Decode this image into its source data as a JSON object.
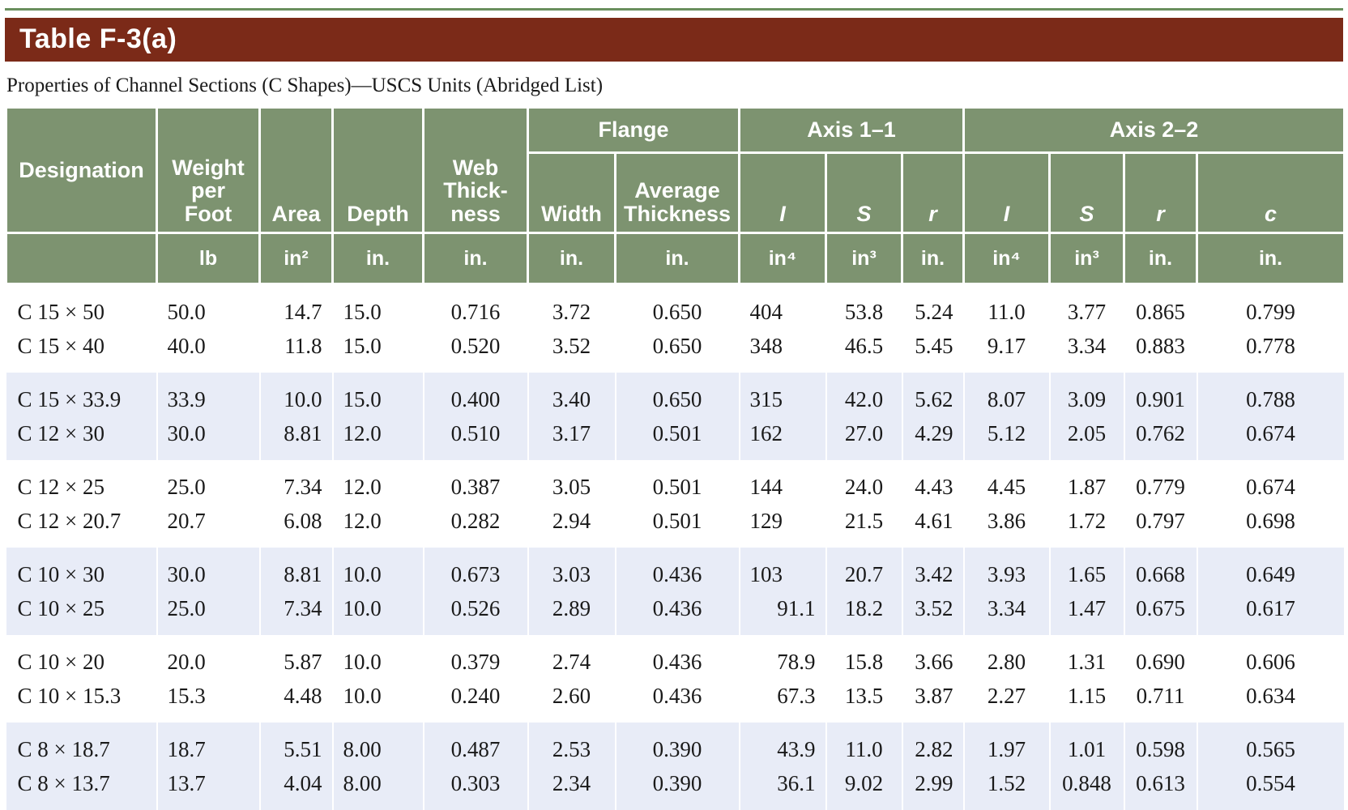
{
  "title": "Table F-3(a)",
  "caption": "Properties of Channel Sections (C Shapes)—USCS Units (Abridged List)",
  "headers": {
    "designation": "Designation",
    "weight_lines": [
      "Weight",
      "per",
      "Foot"
    ],
    "area": "Area",
    "depth": "Depth",
    "web_lines": [
      "Web",
      "Thick-",
      "ness"
    ],
    "flange": "Flange",
    "width": "Width",
    "avg_thick_lines": [
      "Average",
      "Thickness"
    ],
    "axis11": "Axis 1–1",
    "axis22": "Axis 2–2",
    "I": "I",
    "S": "S",
    "r": "r",
    "c": "c"
  },
  "units": {
    "weight": "lb",
    "area": "in²",
    "depth": "in.",
    "web": "in.",
    "width": "in.",
    "avg": "in.",
    "I1": "in⁴",
    "S1": "in³",
    "r1": "in.",
    "I2": "in⁴",
    "S2": "in³",
    "r2": "in.",
    "c": "in."
  },
  "rows": [
    [
      "C 15 × 50",
      "50.0",
      "14.7",
      "15.0",
      "0.716",
      "3.72",
      "0.650",
      "404",
      "53.8",
      "5.24",
      "11.0",
      "3.77",
      "0.865",
      "0.799"
    ],
    [
      "C 15 × 40",
      "40.0",
      "11.8",
      "15.0",
      "0.520",
      "3.52",
      "0.650",
      "348",
      "46.5",
      "5.45",
      "9.17",
      "3.34",
      "0.883",
      "0.778"
    ],
    [
      "C 15 × 33.9",
      "33.9",
      "10.0",
      "15.0",
      "0.400",
      "3.40",
      "0.650",
      "315",
      "42.0",
      "5.62",
      "8.07",
      "3.09",
      "0.901",
      "0.788"
    ],
    [
      "C 12 × 30",
      "30.0",
      "8.81",
      "12.0",
      "0.510",
      "3.17",
      "0.501",
      "162",
      "27.0",
      "4.29",
      "5.12",
      "2.05",
      "0.762",
      "0.674"
    ],
    [
      "C 12 × 25",
      "25.0",
      "7.34",
      "12.0",
      "0.387",
      "3.05",
      "0.501",
      "144",
      "24.0",
      "4.43",
      "4.45",
      "1.87",
      "0.779",
      "0.674"
    ],
    [
      "C 12 × 20.7",
      "20.7",
      "6.08",
      "12.0",
      "0.282",
      "2.94",
      "0.501",
      "129",
      "21.5",
      "4.61",
      "3.86",
      "1.72",
      "0.797",
      "0.698"
    ],
    [
      "C 10 × 30",
      "30.0",
      "8.81",
      "10.0",
      "0.673",
      "3.03",
      "0.436",
      "103",
      "20.7",
      "3.42",
      "3.93",
      "1.65",
      "0.668",
      "0.649"
    ],
    [
      "C 10 × 25",
      "25.0",
      "7.34",
      "10.0",
      "0.526",
      "2.89",
      "0.436",
      "91.1",
      "18.2",
      "3.52",
      "3.34",
      "1.47",
      "0.675",
      "0.617"
    ],
    [
      "C 10 × 20",
      "20.0",
      "5.87",
      "10.0",
      "0.379",
      "2.74",
      "0.436",
      "78.9",
      "15.8",
      "3.66",
      "2.80",
      "1.31",
      "0.690",
      "0.606"
    ],
    [
      "C 10 × 15.3",
      "15.3",
      "4.48",
      "10.0",
      "0.240",
      "2.60",
      "0.436",
      "67.3",
      "13.5",
      "3.87",
      "2.27",
      "1.15",
      "0.711",
      "0.634"
    ],
    [
      "C 8 × 18.7",
      "18.7",
      "5.51",
      "8.00",
      "0.487",
      "2.53",
      "0.390",
      "43.9",
      "11.0",
      "2.82",
      "1.97",
      "1.01",
      "0.598",
      "0.565"
    ],
    [
      "C 8 × 13.7",
      "13.7",
      "4.04",
      "8.00",
      "0.303",
      "2.34",
      "0.390",
      "36.1",
      "9.02",
      "2.99",
      "1.52",
      "0.848",
      "0.613",
      "0.554"
    ]
  ],
  "colors": {
    "title_bar": "#7b2a18",
    "header_bg": "#7d9370",
    "stripe": "#e8ecf7"
  }
}
